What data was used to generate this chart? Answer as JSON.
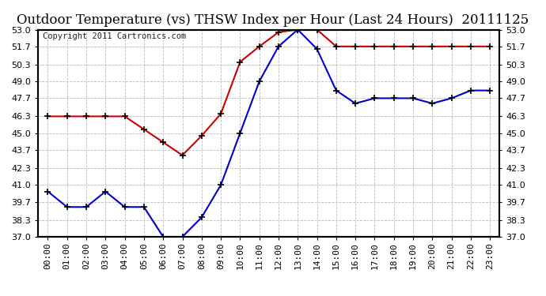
{
  "title": "Outdoor Temperature (vs) THSW Index per Hour (Last 24 Hours)  20111125",
  "copyright": "Copyright 2011 Cartronics.com",
  "hours": [
    "00:00",
    "01:00",
    "02:00",
    "03:00",
    "04:00",
    "05:00",
    "06:00",
    "07:00",
    "08:00",
    "09:00",
    "10:00",
    "11:00",
    "12:00",
    "13:00",
    "14:00",
    "15:00",
    "16:00",
    "17:00",
    "18:00",
    "19:00",
    "20:00",
    "21:00",
    "22:00",
    "23:00"
  ],
  "blue_temp": [
    40.5,
    39.3,
    39.3,
    40.5,
    39.3,
    39.3,
    37.0,
    37.0,
    38.5,
    41.0,
    45.0,
    49.0,
    51.7,
    53.0,
    51.5,
    48.3,
    47.3,
    47.7,
    47.7,
    47.7,
    47.3,
    47.7,
    48.3,
    48.3
  ],
  "red_thsw": [
    46.3,
    46.3,
    46.3,
    46.3,
    46.3,
    45.3,
    44.3,
    43.3,
    44.8,
    46.5,
    50.5,
    51.7,
    52.8,
    53.0,
    53.0,
    51.7,
    51.7,
    51.7,
    51.7,
    51.7,
    51.7,
    51.7,
    51.7,
    51.7
  ],
  "ylim": [
    37.0,
    53.0
  ],
  "yticks": [
    37.0,
    38.3,
    39.7,
    41.0,
    42.3,
    43.7,
    45.0,
    46.3,
    47.7,
    49.0,
    50.3,
    51.7,
    53.0
  ],
  "blue_color": "#0000cc",
  "red_color": "#cc0000",
  "marker_color": "#000000",
  "bg_color": "#ffffff",
  "grid_color": "#bbbbbb",
  "title_fontsize": 12,
  "copyright_fontsize": 7.5,
  "tick_fontsize": 8
}
